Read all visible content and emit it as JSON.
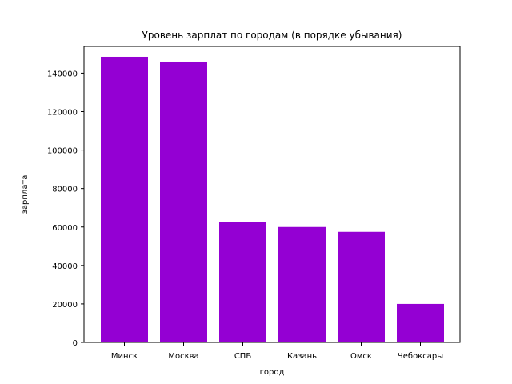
{
  "chart_data": {
    "type": "bar",
    "title": "Уровень зарплат по городам (в порядке убывания)",
    "xlabel": "город",
    "ylabel": "зарплата",
    "categories": [
      "Минск",
      "Москва",
      "СПБ",
      "Казань",
      "Омск",
      "Чебоксары"
    ],
    "values": [
      148500,
      146000,
      62500,
      60000,
      57500,
      20000
    ],
    "ylim": [
      0,
      150000
    ],
    "yticks": [
      0,
      20000,
      40000,
      60000,
      80000,
      100000,
      120000,
      140000
    ],
    "grid": false,
    "bar_color": "#9400d3"
  }
}
